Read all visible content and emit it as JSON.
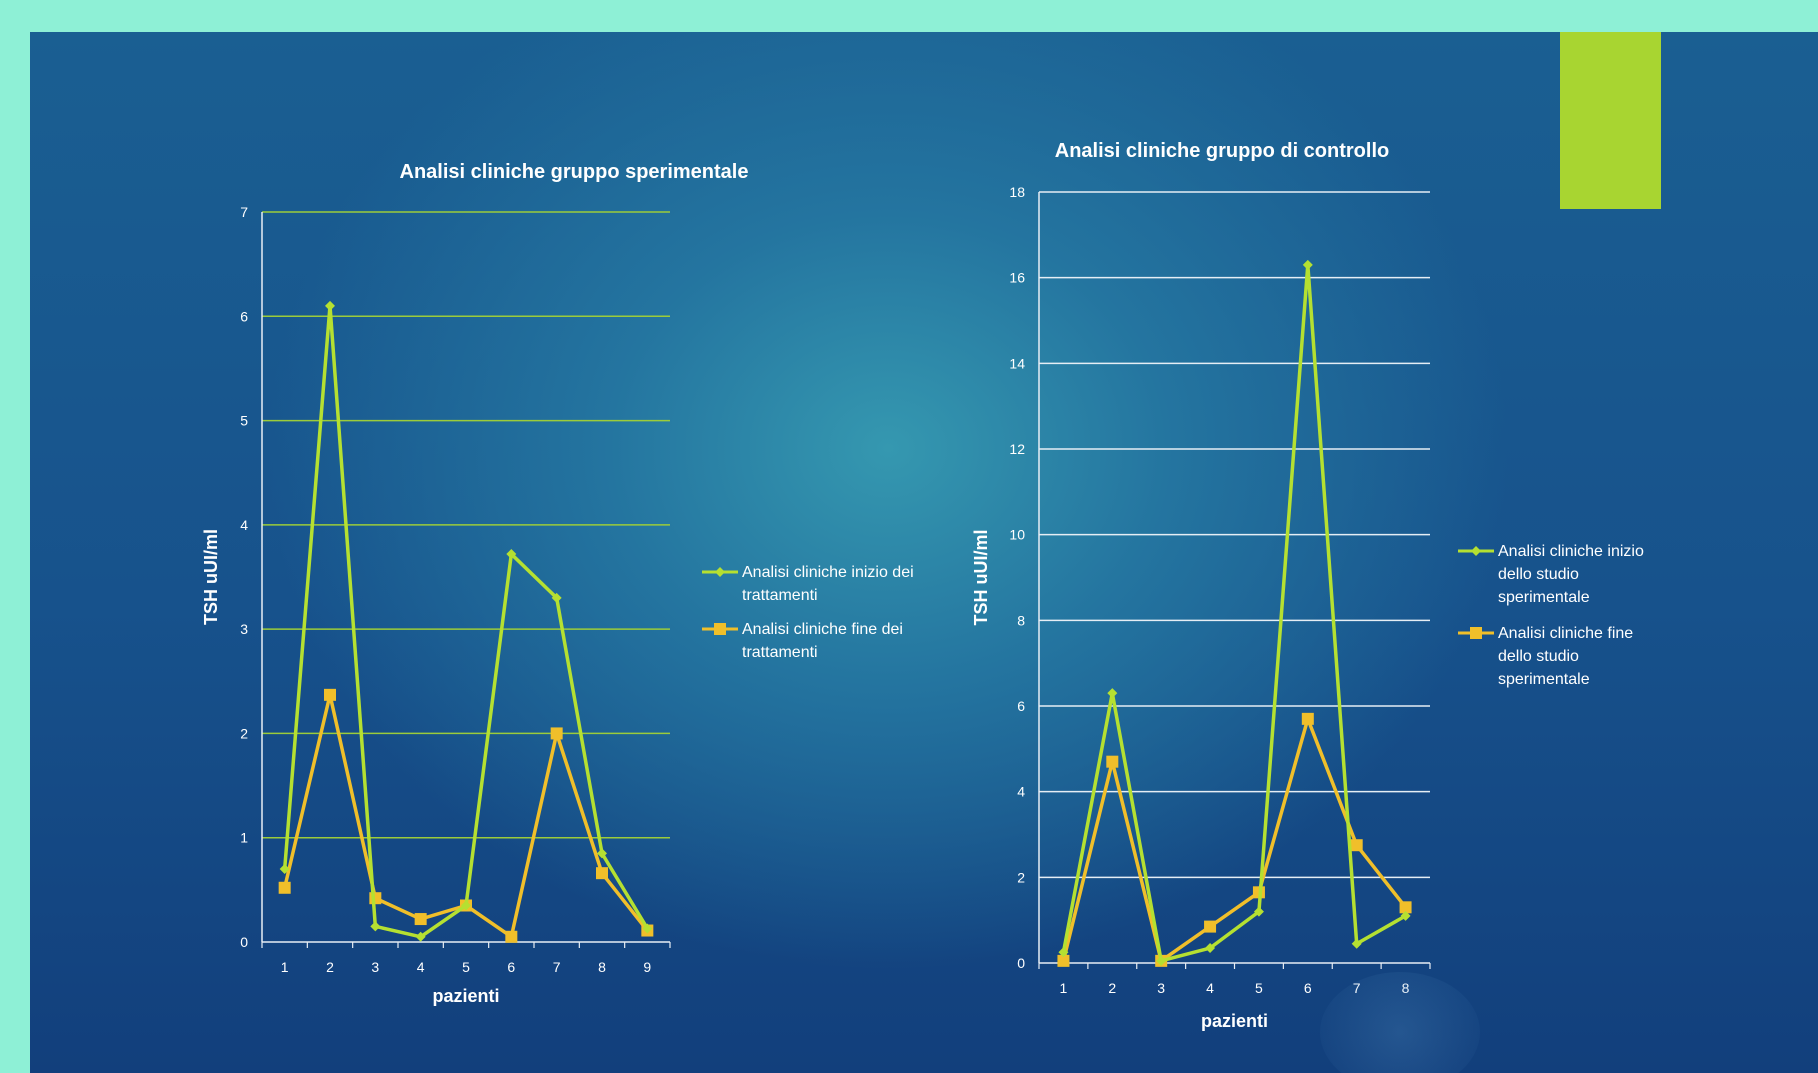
{
  "colors": {
    "series_start": "#b5e031",
    "series_end": "#f0bf2a",
    "grid_left": "#9ccc3a",
    "grid_right": "#e6eef5",
    "accent": "#a8d531"
  },
  "chart_data": [
    {
      "type": "line",
      "title": "Analisi cliniche gruppo sperimentale",
      "xlabel": "pazienti",
      "ylabel": "TSH uUI/ml",
      "categories": [
        "1",
        "2",
        "3",
        "4",
        "5",
        "6",
        "7",
        "8",
        "9"
      ],
      "ylim": [
        0,
        7
      ],
      "yticks": [
        "0",
        "1",
        "2",
        "3",
        "4",
        "5",
        "6",
        "7"
      ],
      "grid": true,
      "legend_position": "right",
      "series": [
        {
          "name": "Analisi cliniche inizio dei trattamenti",
          "legend_lines": [
            "Analisi cliniche inizio dei",
            "trattamenti"
          ],
          "marker": "diamond",
          "values": [
            0.7,
            6.1,
            0.15,
            0.05,
            0.35,
            3.72,
            3.3,
            0.85,
            0.13
          ]
        },
        {
          "name": "Analisi cliniche fine dei trattamenti",
          "legend_lines": [
            "Analisi cliniche fine dei",
            "trattamenti"
          ],
          "marker": "square",
          "values": [
            0.52,
            2.37,
            0.42,
            0.22,
            0.35,
            0.05,
            2.0,
            0.66,
            0.11
          ]
        }
      ]
    },
    {
      "type": "line",
      "title": "Analisi cliniche gruppo di controllo",
      "xlabel": "pazienti",
      "ylabel": "TSH uUI/ml",
      "categories": [
        "1",
        "2",
        "3",
        "4",
        "5",
        "6",
        "7",
        "8"
      ],
      "ylim": [
        0,
        18
      ],
      "yticks": [
        "0",
        "2",
        "4",
        "6",
        "8",
        "10",
        "12",
        "14",
        "16",
        "18"
      ],
      "grid": true,
      "legend_position": "right",
      "series": [
        {
          "name": "Analisi cliniche inizio dello studio sperimentale",
          "legend_lines": [
            "Analisi cliniche inizio",
            "dello studio",
            "sperimentale"
          ],
          "marker": "diamond",
          "values": [
            0.25,
            6.3,
            0.05,
            0.35,
            1.2,
            16.3,
            0.45,
            1.1
          ]
        },
        {
          "name": "Analisi cliniche fine dello studio sperimentale",
          "legend_lines": [
            "Analisi cliniche fine",
            "dello studio",
            "sperimentale"
          ],
          "marker": "square",
          "values": [
            0.05,
            4.7,
            0.05,
            0.85,
            1.65,
            5.7,
            2.75,
            1.3
          ]
        }
      ]
    }
  ]
}
